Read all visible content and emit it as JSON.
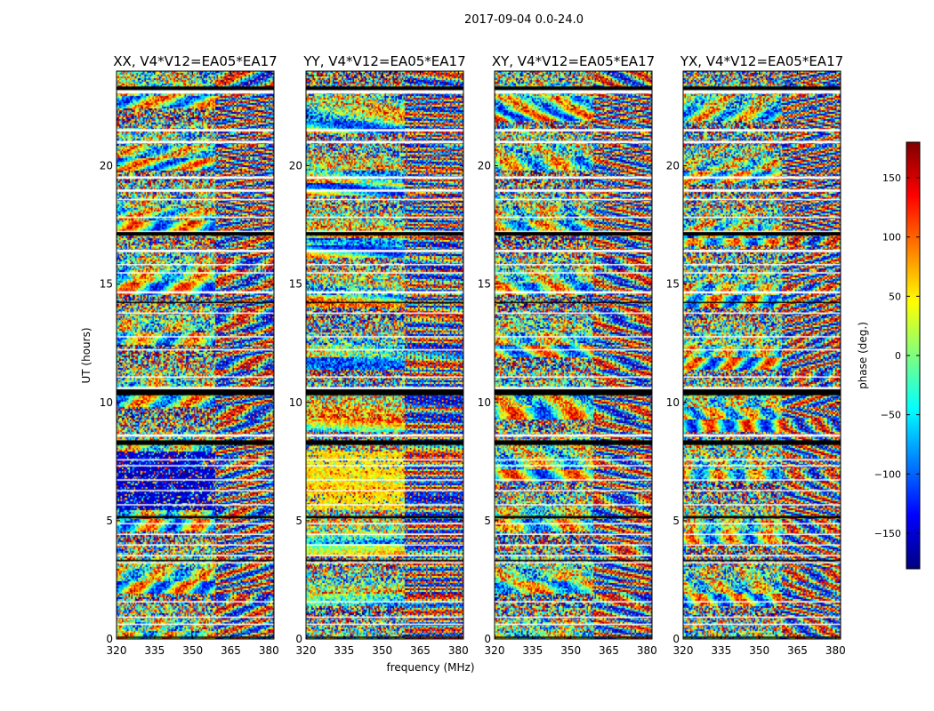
{
  "figure_title": "2017-09-04 0.0-24.0",
  "colors": {
    "jet": [
      "#00007f",
      "#0000ff",
      "#007fff",
      "#00ffff",
      "#7fff7f",
      "#ffff00",
      "#ff7f00",
      "#ff0000",
      "#7f0000"
    ],
    "gap": "#ffffff",
    "flag": "#000000"
  },
  "chart_data": {
    "type": "heatmap",
    "xlabel": "frequency (MHz)",
    "ylabel": "UT (hours)",
    "xlim": [
      320,
      382
    ],
    "ylim": [
      0,
      24
    ],
    "xticks": [
      320,
      335,
      350,
      365,
      380
    ],
    "yticks": [
      0,
      5,
      10,
      15,
      20
    ],
    "panels": [
      {
        "title": "XX, V4*V12=EA05*EA17",
        "seed": 11
      },
      {
        "title": "YY, V4*V12=EA05*EA17",
        "seed": 23
      },
      {
        "title": "XY, V4*V12=EA05*EA17",
        "seed": 37
      },
      {
        "title": "YX, V4*V12=EA05*EA17",
        "seed": 53
      }
    ],
    "colorbar": {
      "label": "phase (deg.)",
      "range": [
        -180,
        180
      ],
      "ticks": [
        -150,
        -100,
        -50,
        0,
        50,
        100,
        150
      ],
      "tick_labels": [
        "−150",
        "−100",
        "−50",
        "0",
        "50",
        "100",
        "150"
      ],
      "colormap": "jet"
    },
    "gap_bands_hours": [
      [
        23.05,
        23.2
      ],
      [
        21.45,
        21.55
      ],
      [
        20.95,
        21.05
      ],
      [
        19.45,
        19.55
      ],
      [
        18.9,
        19.0
      ],
      [
        18.55,
        18.6
      ],
      [
        17.8,
        17.85
      ],
      [
        17.2,
        17.25
      ],
      [
        16.35,
        16.45
      ],
      [
        15.8,
        15.85
      ],
      [
        15.45,
        15.5
      ],
      [
        14.6,
        14.7
      ],
      [
        13.75,
        13.8
      ],
      [
        12.75,
        12.8
      ],
      [
        12.2,
        12.25
      ],
      [
        11.05,
        11.1
      ],
      [
        10.55,
        10.65
      ],
      [
        8.55,
        8.65
      ],
      [
        7.55,
        7.6
      ],
      [
        7.3,
        7.35
      ],
      [
        6.7,
        6.75
      ],
      [
        6.25,
        6.3
      ],
      [
        5.65,
        5.7
      ],
      [
        4.85,
        4.9
      ],
      [
        4.4,
        4.45
      ],
      [
        3.95,
        4.0
      ],
      [
        3.5,
        3.55
      ],
      [
        3.2,
        3.25
      ],
      [
        1.55,
        1.6
      ],
      [
        0.9,
        0.95
      ],
      [
        0.6,
        0.65
      ]
    ],
    "flag_bands_hours": [
      [
        23.2,
        23.35
      ],
      [
        17.05,
        17.2
      ],
      [
        14.2,
        14.25
      ],
      [
        10.3,
        10.55
      ],
      [
        8.2,
        8.4
      ],
      [
        5.1,
        5.2
      ],
      [
        3.3,
        3.35
      ],
      [
        0.05,
        0.1
      ]
    ]
  }
}
